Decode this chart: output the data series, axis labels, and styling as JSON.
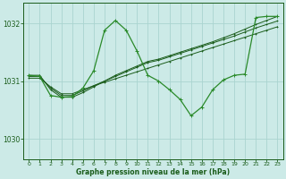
{
  "background_color": "#cceae7",
  "grid_color": "#aad4d0",
  "line_color_dark": "#1a5c1a",
  "line_color_zigzag": "#2a8a2a",
  "xlabel": "Graphe pression niveau de la mer (hPa)",
  "xlim": [
    -0.5,
    23.5
  ],
  "ylim": [
    1029.65,
    1032.35
  ],
  "yticks": [
    1030,
    1031,
    1032
  ],
  "xticks": [
    0,
    1,
    2,
    3,
    4,
    5,
    6,
    7,
    8,
    9,
    10,
    11,
    12,
    13,
    14,
    15,
    16,
    17,
    18,
    19,
    20,
    21,
    22,
    23
  ],
  "trend1": {
    "x": [
      0,
      1,
      2,
      3,
      4,
      5,
      6,
      7,
      8,
      9,
      10,
      11,
      12,
      13,
      14,
      15,
      16,
      17,
      18,
      19,
      20,
      21,
      22,
      23
    ],
    "y": [
      1031.05,
      1031.05,
      1030.9,
      1030.78,
      1030.78,
      1030.85,
      1030.92,
      1030.98,
      1031.04,
      1031.1,
      1031.16,
      1031.22,
      1031.28,
      1031.34,
      1031.4,
      1031.46,
      1031.52,
      1031.58,
      1031.64,
      1031.7,
      1031.76,
      1031.82,
      1031.88,
      1031.94
    ]
  },
  "trend2": {
    "x": [
      0,
      1,
      2,
      3,
      4,
      5,
      6,
      7,
      8,
      9,
      10,
      11,
      12,
      13,
      14,
      15,
      16,
      17,
      18,
      19,
      20,
      21,
      22,
      23
    ],
    "y": [
      1031.08,
      1031.08,
      1030.88,
      1030.75,
      1030.75,
      1030.83,
      1030.92,
      1031.0,
      1031.08,
      1031.16,
      1031.24,
      1031.32,
      1031.36,
      1031.42,
      1031.48,
      1031.54,
      1031.6,
      1031.66,
      1031.72,
      1031.78,
      1031.85,
      1031.92,
      1031.98,
      1032.04
    ]
  },
  "trend3": {
    "x": [
      0,
      1,
      2,
      3,
      4,
      5,
      6,
      7,
      8,
      9,
      10,
      11,
      12,
      13,
      14,
      15,
      16,
      17,
      18,
      19,
      20,
      21,
      22,
      23
    ],
    "y": [
      1031.1,
      1031.1,
      1030.85,
      1030.72,
      1030.72,
      1030.8,
      1030.9,
      1031.0,
      1031.1,
      1031.18,
      1031.26,
      1031.34,
      1031.38,
      1031.44,
      1031.5,
      1031.56,
      1031.62,
      1031.68,
      1031.75,
      1031.82,
      1031.9,
      1031.98,
      1032.05,
      1032.12
    ]
  },
  "zigzag": {
    "x": [
      0,
      1,
      2,
      3,
      4,
      5,
      6,
      7,
      8,
      9,
      10,
      11,
      12,
      13,
      14,
      15,
      16,
      17,
      18,
      19,
      20,
      21,
      22,
      23
    ],
    "y": [
      1031.1,
      1031.08,
      1030.75,
      1030.72,
      1030.73,
      1030.88,
      1031.18,
      1031.88,
      1032.05,
      1031.88,
      1031.52,
      1031.1,
      1031.0,
      1030.85,
      1030.68,
      1030.4,
      1030.55,
      1030.85,
      1031.02,
      1031.1,
      1031.12,
      1032.1,
      1032.12,
      1032.12
    ]
  }
}
